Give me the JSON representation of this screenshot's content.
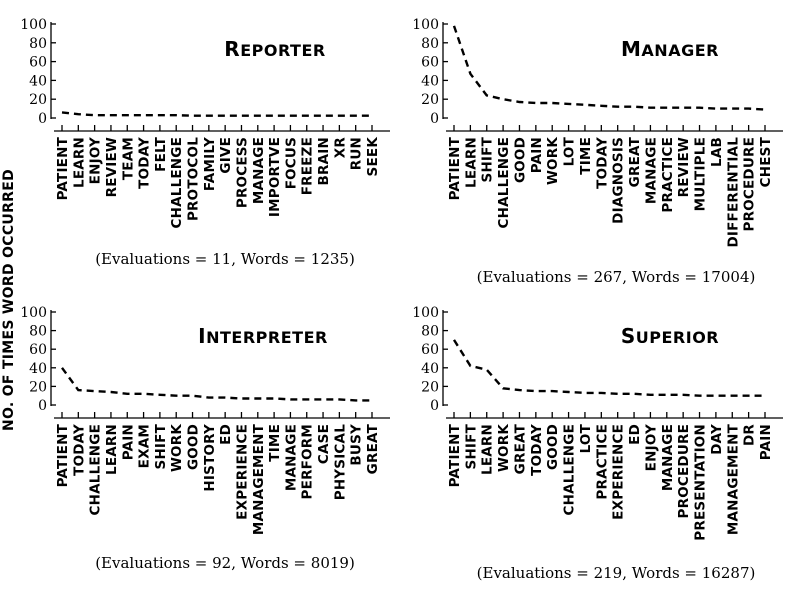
{
  "figure": {
    "ylabel": "NO. OF TIMES WORD OCCURRED"
  },
  "chart_data": [
    {
      "type": "line",
      "title": "REPORTER",
      "caption": "(Evaluations = 11, Words = 1235)",
      "categories": [
        "PATIENT",
        "LEARN",
        "ENJOY",
        "REVIEW",
        "TEAM",
        "TODAY",
        "FELT",
        "CHALLENGE",
        "PROTOCOL",
        "FAMILY",
        "GIVE",
        "PROCESS",
        "MANAGE",
        "IMPORTVE",
        "FOCUS",
        "FREEZE",
        "BRAIN",
        "XR",
        "RUN",
        "SEEK"
      ],
      "values": [
        6,
        4,
        3,
        3,
        3,
        3,
        3,
        3,
        2.5,
        2.5,
        2.5,
        2.5,
        2.5,
        2.5,
        2.5,
        2.5,
        2.5,
        2.5,
        2.5,
        2.5
      ],
      "ylim": [
        0,
        100
      ],
      "yticks": [
        0,
        20,
        40,
        60,
        80,
        100
      ],
      "grid": false
    },
    {
      "type": "line",
      "title": "MANAGER",
      "caption": "(Evaluations = 267, Words = 17004)",
      "categories": [
        "PATIENT",
        "LEARN",
        "SHIFT",
        "CHALLENGE",
        "GOOD",
        "PAIN",
        "WORK",
        "LOT",
        "TIME",
        "TODAY",
        "DIAGNOSIS",
        "GREAT",
        "MANAGE",
        "PRACTICE",
        "REVIEW",
        "MULTIPLE",
        "LAB",
        "DIFFERENTIAL",
        "PROCEDURE",
        "CHEST"
      ],
      "values": [
        98,
        47,
        24,
        20,
        17,
        16,
        16,
        15,
        14,
        13,
        12,
        12,
        11,
        11,
        11,
        11,
        10,
        10,
        10,
        9
      ],
      "ylim": [
        0,
        100
      ],
      "yticks": [
        0,
        20,
        40,
        60,
        80,
        100
      ],
      "grid": false
    },
    {
      "type": "line",
      "title": "INTERPRETER",
      "caption": "(Evaluations = 92, Words = 8019)",
      "categories": [
        "PATIENT",
        "TODAY",
        "CHALLENGE",
        "LEARN",
        "PAIN",
        "EXAM",
        "SHIFT",
        "WORK",
        "GOOD",
        "HISTORY",
        "ED",
        "EXPERIENCE",
        "MANAGEMENT",
        "TIME",
        "MANAGE",
        "PERFORM",
        "CASE",
        "PHYSICAL",
        "BUSY",
        "GREAT"
      ],
      "values": [
        40,
        16,
        15,
        14,
        12,
        12,
        11,
        10,
        10,
        8,
        8,
        7,
        7,
        7,
        6,
        6,
        6,
        6,
        5,
        5
      ],
      "ylim": [
        0,
        100
      ],
      "yticks": [
        0,
        20,
        40,
        60,
        80,
        100
      ],
      "grid": false
    },
    {
      "type": "line",
      "title": "SUPERIOR",
      "caption": "(Evaluations = 219, Words = 16287)",
      "categories": [
        "PATIENT",
        "SHIFT",
        "LEARN",
        "WORK",
        "GREAT",
        "TODAY",
        "GOOD",
        "CHALLENGE",
        "LOT",
        "PRACTICE",
        "EXPERIENCE",
        "ED",
        "ENJOY",
        "MANAGE",
        "PROCEDURE",
        "PRESENTATION",
        "DAY",
        "MANAGEMENT",
        "DR",
        "PAIN"
      ],
      "values": [
        70,
        42,
        38,
        18,
        16,
        15,
        15,
        14,
        13,
        13,
        12,
        12,
        11,
        11,
        11,
        10,
        10,
        10,
        10,
        10
      ],
      "ylim": [
        0,
        100
      ],
      "yticks": [
        0,
        20,
        40,
        60,
        80,
        100
      ],
      "grid": false
    }
  ]
}
